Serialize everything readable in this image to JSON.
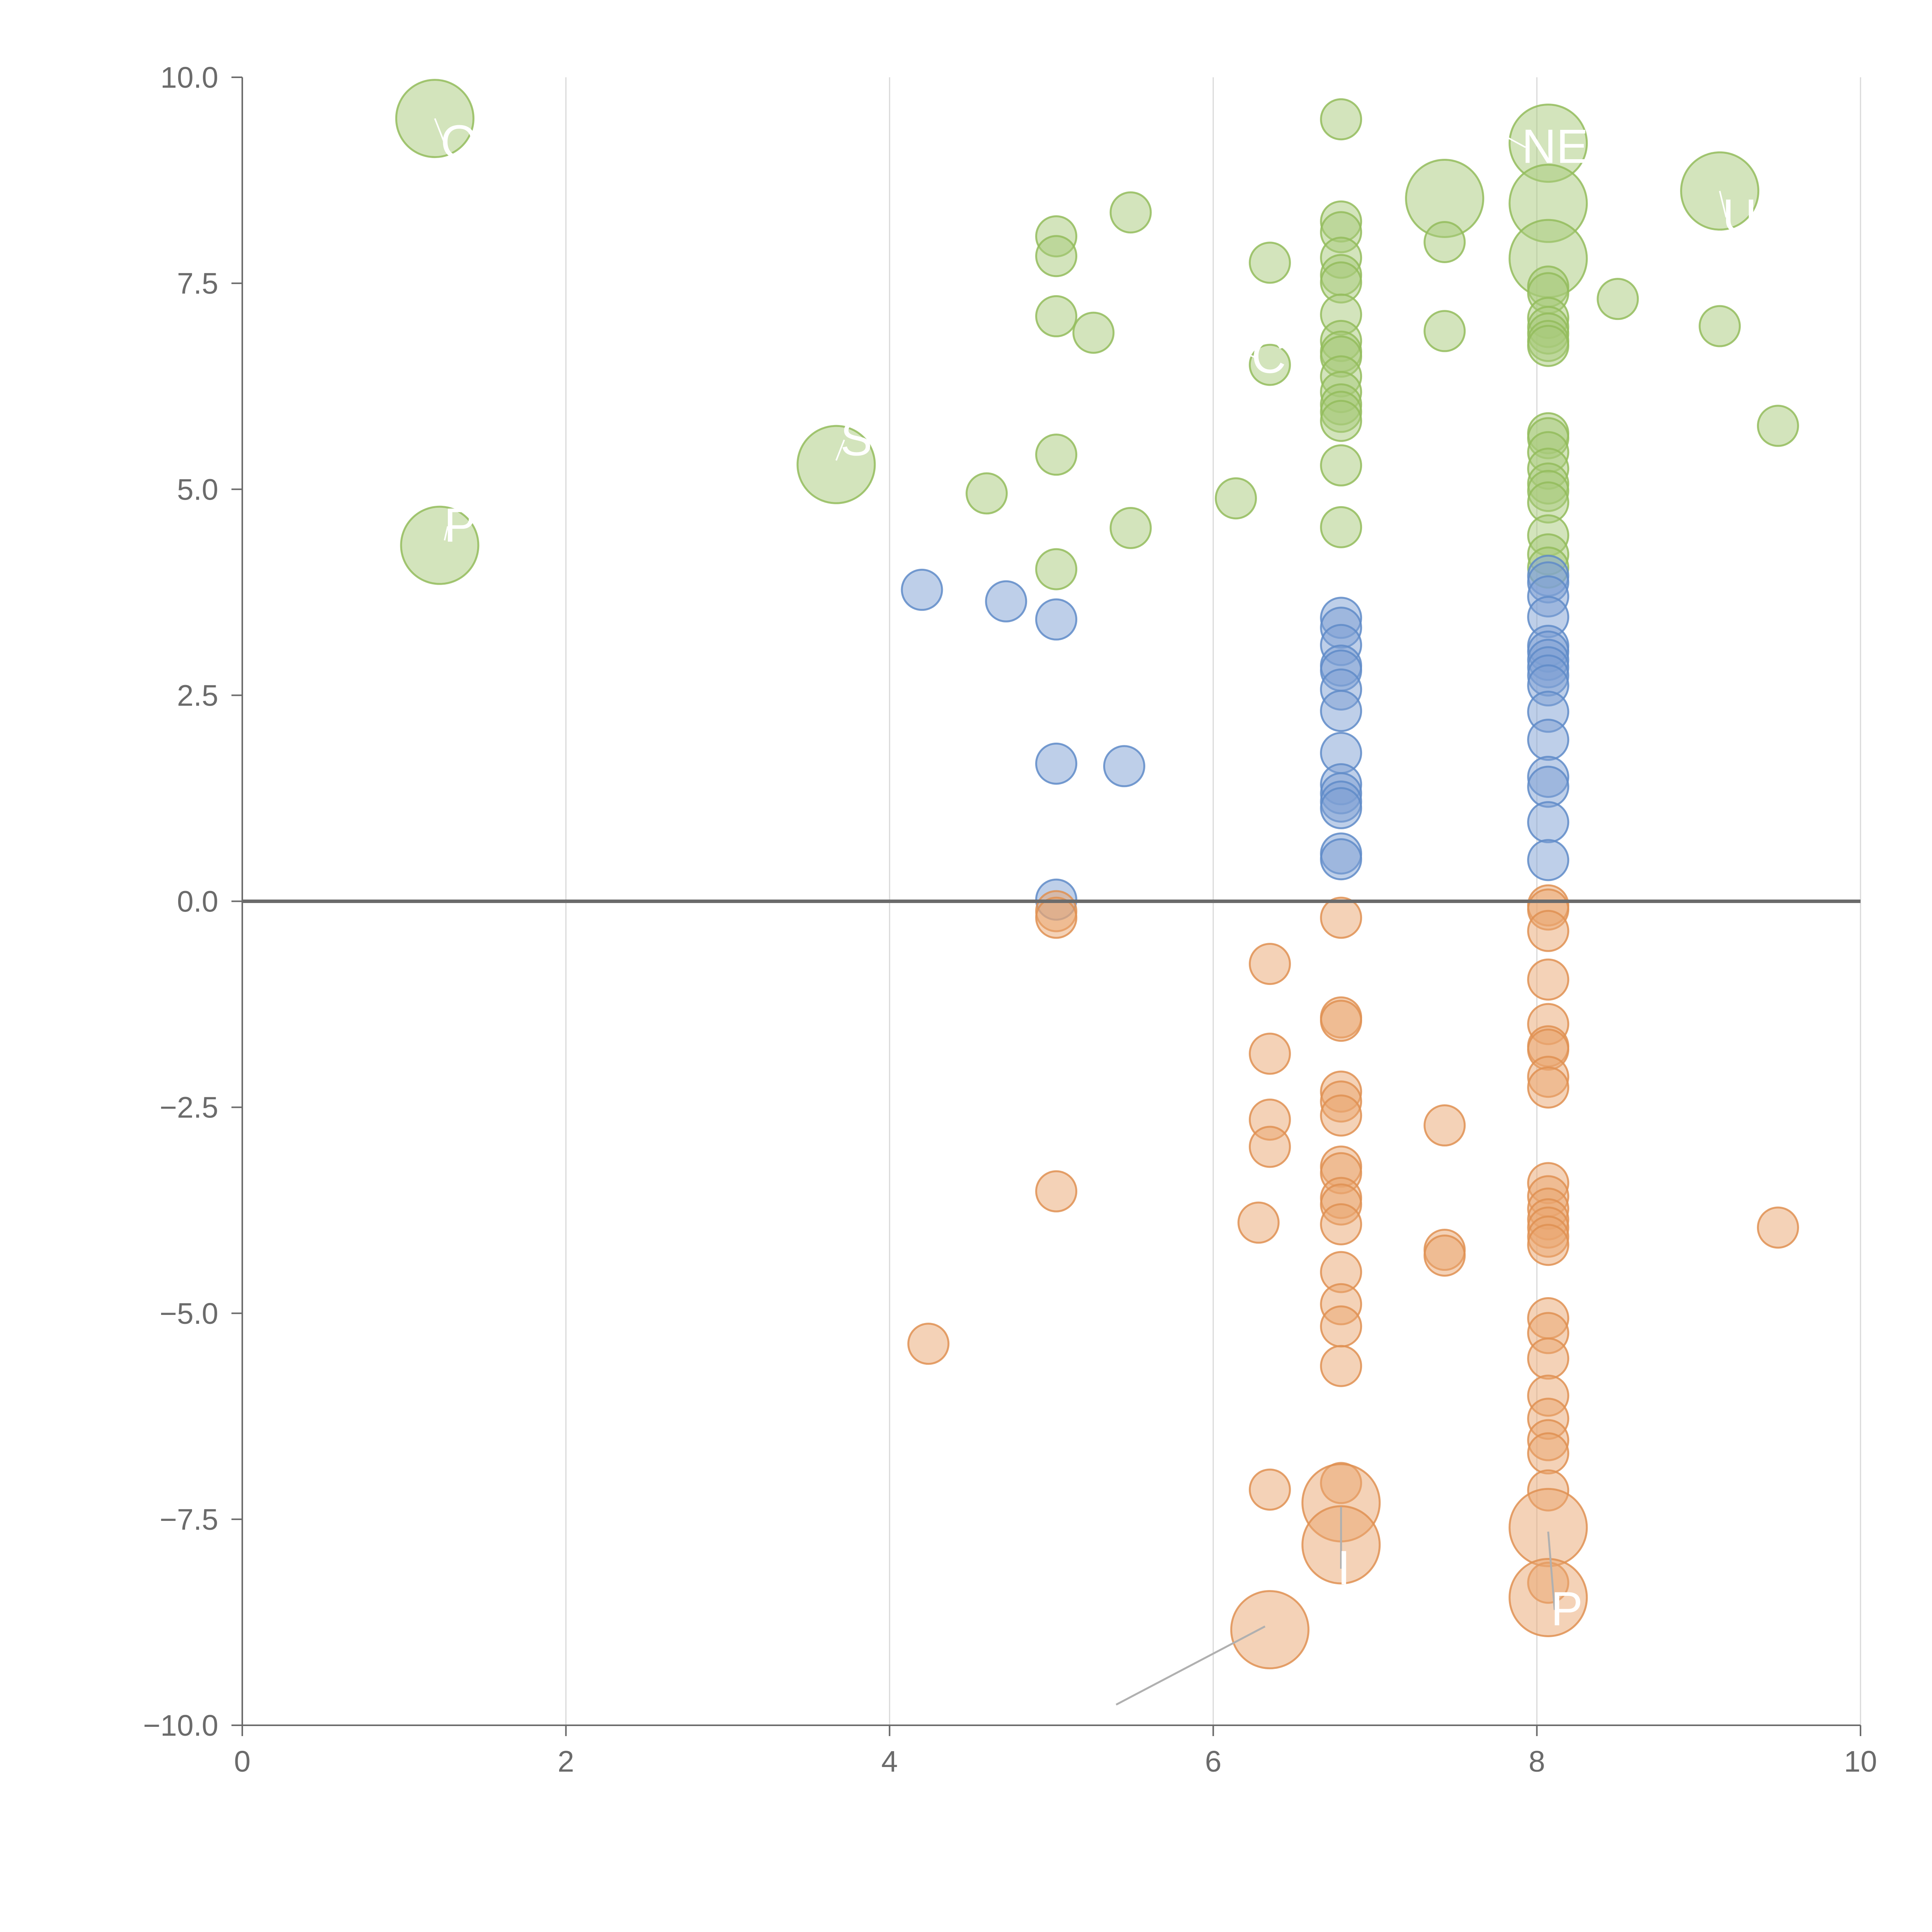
{
  "chart_data": {
    "type": "scatter",
    "title": "",
    "xlabel": "",
    "ylabel": "",
    "xlim": [
      0,
      10
    ],
    "ylim": [
      -10,
      10
    ],
    "x_ticks": [
      "0",
      "2",
      "4",
      "6",
      "8",
      "10"
    ],
    "y_ticks": [
      "10.0",
      "7.5",
      "5.0",
      "2.5",
      "0.0",
      "−2.5",
      "−5.0",
      "−7.5",
      "−10.0"
    ],
    "x_tick_values": [
      0,
      2,
      4,
      6,
      8,
      10
    ],
    "y_tick_values": [
      10,
      7.5,
      5,
      2.5,
      0,
      -2.5,
      -5,
      -7.5,
      -10
    ],
    "vertical_grid": true,
    "horizontal_grid": false,
    "reference_line_y": 0,
    "legend": "none",
    "colors": {
      "green": {
        "fill": "#a7c97a",
        "stroke": "#93bc5c"
      },
      "blue": {
        "fill": "#7ea0d3",
        "stroke": "#5f8bc8"
      },
      "orange": {
        "fill": "#e9a66f",
        "stroke": "#df9052"
      }
    },
    "series": [
      {
        "color": "green",
        "points": [
          [
            1.19,
            9.5,
            3
          ],
          [
            1.22,
            4.32,
            3
          ],
          [
            3.67,
            5.3,
            3
          ],
          [
            4.6,
            4.95,
            1
          ],
          [
            5.03,
            8.07,
            1
          ],
          [
            5.03,
            7.83,
            1
          ],
          [
            5.03,
            7.1,
            1
          ],
          [
            5.03,
            5.42,
            1
          ],
          [
            5.03,
            4.03,
            1
          ],
          [
            5.26,
            6.9,
            1
          ],
          [
            5.49,
            8.36,
            1
          ],
          [
            5.49,
            4.53,
            1
          ],
          [
            6.14,
            4.89,
            1
          ],
          [
            6.35,
            7.75,
            1
          ],
          [
            6.35,
            6.51,
            1
          ],
          [
            6.79,
            9.49,
            1
          ],
          [
            6.79,
            8.25,
            1
          ],
          [
            6.79,
            8.12,
            1
          ],
          [
            6.79,
            7.81,
            1
          ],
          [
            6.79,
            7.6,
            1
          ],
          [
            6.79,
            7.51,
            1
          ],
          [
            6.79,
            7.12,
            1
          ],
          [
            6.79,
            6.8,
            1
          ],
          [
            6.79,
            6.67,
            1
          ],
          [
            6.79,
            6.61,
            1
          ],
          [
            6.79,
            6.37,
            1
          ],
          [
            6.79,
            6.18,
            1
          ],
          [
            6.79,
            6.03,
            1
          ],
          [
            6.79,
            5.94,
            1
          ],
          [
            6.79,
            5.83,
            1
          ],
          [
            6.79,
            5.29,
            1
          ],
          [
            6.79,
            4.54,
            1
          ],
          [
            7.43,
            8.53,
            3
          ],
          [
            7.43,
            8.0,
            1
          ],
          [
            7.43,
            6.92,
            1
          ],
          [
            8.07,
            9.2,
            3
          ],
          [
            8.07,
            8.47,
            3
          ],
          [
            8.07,
            7.8,
            3
          ],
          [
            8.07,
            7.46,
            1
          ],
          [
            8.07,
            7.38,
            1
          ],
          [
            8.07,
            7.08,
            1
          ],
          [
            8.07,
            6.97,
            1
          ],
          [
            8.07,
            6.89,
            1
          ],
          [
            8.07,
            6.8,
            1
          ],
          [
            8.07,
            6.74,
            1
          ],
          [
            8.07,
            5.68,
            1
          ],
          [
            8.07,
            5.62,
            1
          ],
          [
            8.07,
            5.45,
            1
          ],
          [
            8.07,
            5.25,
            1
          ],
          [
            8.07,
            5.07,
            1
          ],
          [
            8.07,
            4.98,
            1
          ],
          [
            8.07,
            4.84,
            1
          ],
          [
            8.07,
            4.44,
            1
          ],
          [
            8.07,
            4.21,
            1
          ],
          [
            8.07,
            4.05,
            1
          ],
          [
            8.5,
            7.31,
            1
          ],
          [
            9.13,
            8.62,
            3
          ],
          [
            9.13,
            6.98,
            1
          ],
          [
            9.49,
            5.77,
            1
          ]
        ]
      },
      {
        "color": "blue",
        "points": [
          [
            4.2,
            3.78,
            1
          ],
          [
            4.72,
            3.64,
            1
          ],
          [
            5.03,
            3.42,
            1
          ],
          [
            5.03,
            1.67,
            1
          ],
          [
            5.03,
            0.02,
            1
          ],
          [
            5.45,
            1.64,
            1
          ],
          [
            6.79,
            3.44,
            1
          ],
          [
            6.79,
            3.32,
            1
          ],
          [
            6.79,
            3.11,
            1
          ],
          [
            6.79,
            2.86,
            1
          ],
          [
            6.79,
            2.8,
            1
          ],
          [
            6.79,
            2.57,
            1
          ],
          [
            6.79,
            2.31,
            1
          ],
          [
            6.79,
            1.8,
            1
          ],
          [
            6.79,
            1.42,
            1
          ],
          [
            6.79,
            1.31,
            1
          ],
          [
            6.79,
            1.21,
            1
          ],
          [
            6.79,
            1.13,
            1
          ],
          [
            6.79,
            0.58,
            1
          ],
          [
            6.79,
            0.51,
            1
          ],
          [
            8.07,
            3.95,
            1
          ],
          [
            8.07,
            3.87,
            1
          ],
          [
            8.07,
            3.7,
            1
          ],
          [
            8.07,
            3.45,
            1
          ],
          [
            8.07,
            3.1,
            1
          ],
          [
            8.07,
            3.03,
            1
          ],
          [
            8.07,
            2.93,
            1
          ],
          [
            8.07,
            2.84,
            1
          ],
          [
            8.07,
            2.74,
            1
          ],
          [
            8.07,
            2.62,
            1
          ],
          [
            8.07,
            2.3,
            1
          ],
          [
            8.07,
            1.96,
            1
          ],
          [
            8.07,
            1.51,
            1
          ],
          [
            8.07,
            1.39,
            1
          ],
          [
            8.07,
            0.96,
            1
          ],
          [
            8.07,
            0.5,
            1
          ]
        ]
      },
      {
        "color": "orange",
        "points": [
          [
            4.24,
            -5.37,
            1
          ],
          [
            5.03,
            -0.12,
            1
          ],
          [
            5.03,
            -0.2,
            1
          ],
          [
            5.03,
            -3.52,
            1
          ],
          [
            6.28,
            -3.9,
            1
          ],
          [
            6.35,
            -0.76,
            1
          ],
          [
            6.35,
            -1.85,
            1
          ],
          [
            6.35,
            -2.65,
            1
          ],
          [
            6.35,
            -2.98,
            1
          ],
          [
            6.35,
            -7.14,
            1
          ],
          [
            6.35,
            -8.84,
            3
          ],
          [
            6.79,
            -0.2,
            1
          ],
          [
            6.79,
            -1.41,
            1
          ],
          [
            6.79,
            -1.45,
            1
          ],
          [
            6.79,
            -2.31,
            1
          ],
          [
            6.79,
            -2.43,
            1
          ],
          [
            6.79,
            -2.6,
            1
          ],
          [
            6.79,
            -3.22,
            1
          ],
          [
            6.79,
            -3.3,
            1
          ],
          [
            6.79,
            -3.6,
            1
          ],
          [
            6.79,
            -3.68,
            1
          ],
          [
            6.79,
            -3.92,
            1
          ],
          [
            6.79,
            -4.5,
            1
          ],
          [
            6.79,
            -4.89,
            1
          ],
          [
            6.79,
            -5.16,
            1
          ],
          [
            6.79,
            -5.64,
            1
          ],
          [
            6.79,
            -7.06,
            1
          ],
          [
            6.79,
            -7.3,
            3
          ],
          [
            6.79,
            -7.81,
            3
          ],
          [
            7.43,
            -2.72,
            1
          ],
          [
            7.43,
            -4.23,
            1
          ],
          [
            7.43,
            -4.3,
            1
          ],
          [
            8.07,
            -0.05,
            1
          ],
          [
            8.07,
            -0.1,
            1
          ],
          [
            8.07,
            -0.36,
            1
          ],
          [
            8.07,
            -0.95,
            1
          ],
          [
            8.07,
            -1.49,
            1
          ],
          [
            8.07,
            -1.76,
            1
          ],
          [
            8.07,
            -1.8,
            1
          ],
          [
            8.07,
            -2.13,
            1
          ],
          [
            8.07,
            -2.26,
            1
          ],
          [
            8.07,
            -3.42,
            1
          ],
          [
            8.07,
            -3.58,
            1
          ],
          [
            8.07,
            -3.73,
            1
          ],
          [
            8.07,
            -3.86,
            1
          ],
          [
            8.07,
            -3.96,
            1
          ],
          [
            8.07,
            -4.07,
            1
          ],
          [
            8.07,
            -4.17,
            1
          ],
          [
            8.07,
            -5.06,
            1
          ],
          [
            8.07,
            -5.24,
            1
          ],
          [
            8.07,
            -5.55,
            1
          ],
          [
            8.07,
            -6.0,
            1
          ],
          [
            8.07,
            -6.28,
            1
          ],
          [
            8.07,
            -6.54,
            1
          ],
          [
            8.07,
            -6.7,
            1
          ],
          [
            8.07,
            -7.15,
            1
          ],
          [
            8.07,
            -7.6,
            3
          ],
          [
            8.07,
            -8.27,
            1
          ],
          [
            8.07,
            -8.45,
            3
          ],
          [
            9.49,
            -3.96,
            1
          ]
        ]
      }
    ],
    "labels": [
      {
        "text": "O",
        "x": 1.25,
        "y": 9.2,
        "anchor": [
          1.19,
          9.5
        ]
      },
      {
        "text": "P",
        "x": 1.27,
        "y": 4.55,
        "anchor": [
          1.25,
          4.38
        ]
      },
      {
        "text": "S",
        "x": 3.72,
        "y": 5.6,
        "anchor": [
          3.67,
          5.35
        ]
      },
      {
        "text": "NEA",
        "x": 7.93,
        "y": 9.15,
        "anchor": [
          7.63,
          9.47
        ]
      },
      {
        "text": "U",
        "x": 9.17,
        "y": 8.3,
        "anchor": [
          9.13,
          8.62
        ]
      },
      {
        "text": "C",
        "x": 6.26,
        "y": 6.6,
        "anchor": [
          6.07,
          6.75
        ]
      },
      {
        "text": "I",
        "x": 6.79,
        "y": -8.1,
        "anchor": [
          6.79,
          -7.35
        ]
      },
      {
        "text": "P",
        "x": 8.11,
        "y": -8.6,
        "anchor": [
          8.07,
          -7.65
        ]
      },
      {
        "text": "",
        "x": 5.4,
        "y": -9.75,
        "anchor": [
          6.32,
          -8.8
        ]
      }
    ]
  }
}
